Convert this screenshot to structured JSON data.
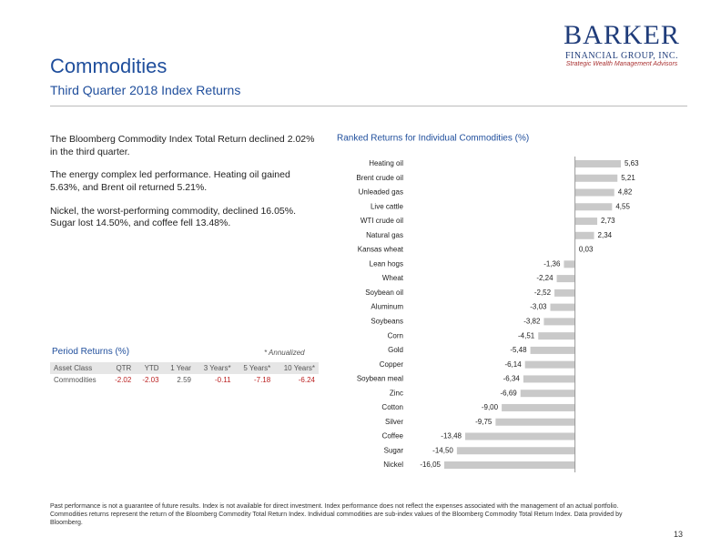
{
  "header": {
    "title": "Commodities",
    "subtitle": "Third Quarter 2018 Index Returns"
  },
  "logo": {
    "name": "BARKER",
    "line2": "FINANCIAL GROUP, INC.",
    "tagline": "Strategic Wealth Management Advisors"
  },
  "paragraphs": [
    "The Bloomberg Commodity Index Total Return declined 2.02% in the third quarter.",
    "The energy complex led performance. Heating oil gained 5.63%, and Brent oil returned 5.21%.",
    "Nickel, the worst-performing commodity, declined 16.05%. Sugar lost 14.50%, and coffee fell 13.48%."
  ],
  "table": {
    "title": "Period Returns (%)",
    "note": "* Annualized",
    "header": [
      "Asset Class",
      "QTR",
      "YTD",
      "1 Year",
      "3 Years*",
      "5 Years*",
      "10 Years*"
    ],
    "rows": [
      [
        "Commodities",
        "-2.02",
        "-2.03",
        "2.59",
        "-0.11",
        "-7.18",
        "-6.24"
      ]
    ]
  },
  "chart_data": {
    "type": "bar",
    "orientation": "horizontal",
    "title": "Ranked Returns for Individual Commodities (%)",
    "color": "#c9c9c9",
    "categories": [
      "Heating oil",
      "Brent crude oil",
      "Unleaded gas",
      "Live cattle",
      "WTI crude oil",
      "Natural gas",
      "Kansas wheat",
      "Lean hogs",
      "Wheat",
      "Soybean oil",
      "Aluminum",
      "Soybeans",
      "Corn",
      "Gold",
      "Copper",
      "Soybean meal",
      "Zinc",
      "Cotton",
      "Silver",
      "Coffee",
      "Sugar",
      "Nickel"
    ],
    "values": [
      5.63,
      5.21,
      4.82,
      4.55,
      2.73,
      2.34,
      0.03,
      -1.36,
      -2.24,
      -2.52,
      -3.03,
      -3.82,
      -4.51,
      -5.48,
      -6.14,
      -6.34,
      -6.69,
      -9.0,
      -9.75,
      -13.48,
      -14.5,
      -16.05
    ],
    "value_labels": [
      "5,63",
      "5,21",
      "4,82",
      "4,55",
      "2,73",
      "2,34",
      "0,03",
      "-1,36",
      "-2,24",
      "-2,52",
      "-3,03",
      "-3,82",
      "-4,51",
      "-5,48",
      "-6,14",
      "-6,34",
      "-6,69",
      "-9,00",
      "-9,75",
      "-13,48",
      "-14,50",
      "-16,05"
    ]
  },
  "footer": {
    "disclaimer": "Past performance is not a guarantee of future results. Index is not available for direct investment. Index performance does not reflect the expenses associated with the management of an actual portfolio.",
    "source": "Commodities returns represent the return of the Bloomberg Commodity Total Return Index. Individual commodities are sub-index values of the Bloomberg Commodity Total Return Index. Data provided by Bloomberg.",
    "page": "13"
  }
}
